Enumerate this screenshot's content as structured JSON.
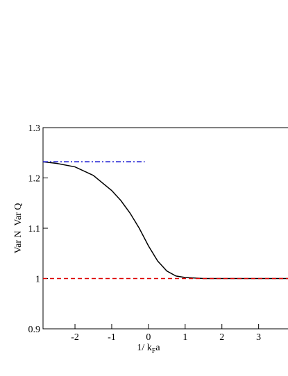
{
  "chart_data": {
    "type": "line",
    "xlabel": [
      "1/ k",
      "F",
      "a"
    ],
    "ylabel": "Var N  Var Q",
    "xlim": [
      -2.87,
      3.8
    ],
    "ylim": [
      0.9,
      1.3
    ],
    "xticks": [
      -2,
      -1,
      0,
      1,
      2,
      3
    ],
    "yticks": [
      0.9,
      1,
      1.1,
      1.2,
      1.3
    ],
    "series": [
      {
        "color": "#000000",
        "dash": "solid",
        "x": [
          -2.87,
          -2.5,
          -2,
          -1.5,
          -1,
          -0.75,
          -0.5,
          -0.25,
          0,
          0.25,
          0.5,
          0.75,
          1,
          1.25,
          1.5,
          2,
          3,
          3.8
        ],
        "values": [
          1.232,
          1.229,
          1.222,
          1.205,
          1.175,
          1.155,
          1.13,
          1.1,
          1.065,
          1.035,
          1.015,
          1.005,
          1.002,
          1.001,
          1.0,
          1.0,
          1.0,
          1.0
        ]
      },
      {
        "color": "#0000cc",
        "dash": "dashdot",
        "x": [
          -2.87,
          -0.1
        ],
        "values": [
          1.232,
          1.232
        ]
      },
      {
        "color": "#dd0000",
        "dash": "dashed",
        "x": [
          -2.87,
          3.8
        ],
        "values": [
          1,
          1
        ]
      }
    ]
  }
}
